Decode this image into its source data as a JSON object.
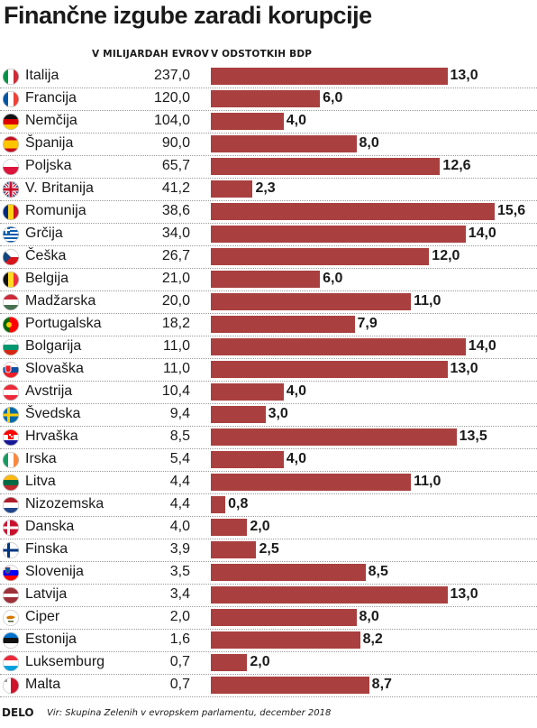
{
  "chart_data": {
    "type": "bar",
    "title": "Finančne izgube zaradi korupcije",
    "column_headers": [
      "V MILIJARDAH EVROV",
      "V ODSTOTKIH BDP"
    ],
    "xlim": [
      0,
      16
    ],
    "categories": [
      "Italija",
      "Francija",
      "Nemčija",
      "Španija",
      "Poljska",
      "V. Britanija",
      "Romunija",
      "Grčija",
      "Češka",
      "Belgija",
      "Madžarska",
      "Portugalska",
      "Bolgarija",
      "Slovaška",
      "Avstrija",
      "Švedska",
      "Hrvaška",
      "Irska",
      "Litva",
      "Nizozemska",
      "Danska",
      "Finska",
      "Slovenija",
      "Latvija",
      "Ciper",
      "Estonija",
      "Luksemburg",
      "Malta"
    ],
    "eur_labels": [
      "237,0",
      "120,0",
      "104,0",
      "90,0",
      "65,7",
      "41,2",
      "38,6",
      "34,0",
      "26,7",
      "21,0",
      "20,0",
      "18,2",
      "11,0",
      "11,0",
      "10,4",
      "9,4",
      "8,5",
      "5,4",
      "4,4",
      "4,4",
      "4,0",
      "3,9",
      "3,5",
      "3,4",
      "2,0",
      "1,6",
      "0,7",
      "0,7"
    ],
    "values": [
      13.0,
      6.0,
      4.0,
      8.0,
      12.6,
      2.3,
      15.6,
      14.0,
      12.0,
      6.0,
      11.0,
      7.9,
      14.0,
      13.0,
      4.0,
      3.0,
      13.5,
      4.0,
      11.0,
      0.8,
      2.0,
      2.5,
      8.5,
      13.0,
      8.0,
      8.2,
      2.0,
      8.7
    ],
    "value_labels": [
      "13,0",
      "6,0",
      "4,0",
      "8,0",
      "12,6",
      "2,3",
      "15,6",
      "14,0",
      "12,0",
      "6,0",
      "11,0",
      "7,9",
      "14,0",
      "13,0",
      "4,0",
      "3,0",
      "13,5",
      "4,0",
      "11,0",
      "0,8",
      "2,0",
      "2,5",
      "8,5",
      "13,0",
      "8,0",
      "8,2",
      "2,0",
      "8,7"
    ],
    "bar_color": "#a9403f",
    "flag_icons": [
      "flag-italy",
      "flag-france",
      "flag-germany",
      "flag-spain",
      "flag-poland",
      "flag-uk",
      "flag-romania",
      "flag-greece",
      "flag-czechia",
      "flag-belgium",
      "flag-hungary",
      "flag-portugal",
      "flag-bulgaria",
      "flag-slovakia",
      "flag-austria",
      "flag-sweden",
      "flag-croatia",
      "flag-ireland",
      "flag-lithuania",
      "flag-netherlands",
      "flag-denmark",
      "flag-finland",
      "flag-slovenia",
      "flag-latvia",
      "flag-cyprus",
      "flag-estonia",
      "flag-luxembourg",
      "flag-malta"
    ]
  },
  "footer": {
    "logo": "DELO",
    "source": "Vir: Skupina Zelenih v evropskem parlamentu, december 2018"
  }
}
